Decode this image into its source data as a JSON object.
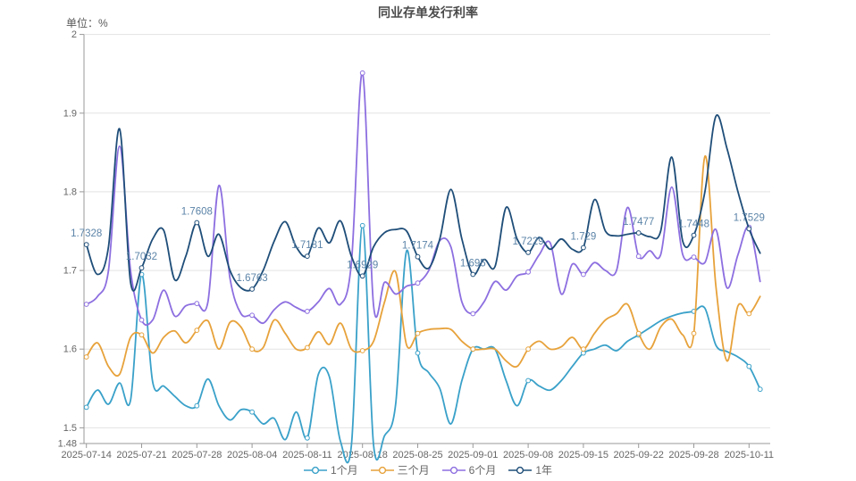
{
  "title": "同业存单发行利率",
  "unit_label": "单位：%",
  "legend": [
    {
      "label": "1个月",
      "color": "#3aa1c9"
    },
    {
      "label": "三个月",
      "color": "#e7a23b"
    },
    {
      "label": "6个月",
      "color": "#8d6fe0"
    },
    {
      "label": "1年",
      "color": "#1f4e79"
    }
  ],
  "chart_data": {
    "type": "line",
    "title": "同业存单发行利率",
    "ylabel": "单位：%",
    "ylim": [
      1.48,
      2.0
    ],
    "yticks": [
      1.48,
      1.5,
      1.6,
      1.7,
      1.8,
      1.9,
      2
    ],
    "ytick_labels": [
      "1.48",
      "1.5",
      "1.6",
      "1.7",
      "1.8",
      "1.9",
      "2"
    ],
    "grid_values": [
      1.5,
      1.6,
      1.7,
      1.8,
      1.9,
      2
    ],
    "x_labels": [
      "2025-07-14",
      "2025-07-21",
      "2025-07-28",
      "2025-08-04",
      "2025-08-11",
      "2025-08-18",
      "2025-08-25",
      "2025-09-01",
      "2025-09-08",
      "2025-09-15",
      "2025-09-22",
      "2025-09-28",
      "2025-10-11"
    ],
    "label_indices": [
      0,
      5,
      10,
      15,
      20,
      25,
      30,
      35,
      40,
      45,
      50,
      55,
      60
    ],
    "label_color": "#5c84a8",
    "grid_color": "#e3e3e3",
    "axis_color": "#999999",
    "tick_text_color": "#666666",
    "legend_position": "bottom",
    "series": [
      {
        "name": "1个月",
        "color": "#3aa1c9",
        "end_marker": true,
        "values": [
          1.526,
          1.548,
          1.53,
          1.557,
          1.535,
          1.695,
          1.558,
          1.553,
          1.54,
          1.528,
          1.528,
          1.562,
          1.528,
          1.51,
          1.523,
          1.52,
          1.505,
          1.512,
          1.485,
          1.52,
          1.487,
          1.568,
          1.565,
          1.483,
          1.478,
          1.757,
          1.478,
          1.49,
          1.53,
          1.725,
          1.595,
          1.57,
          1.55,
          1.505,
          1.56,
          1.6,
          1.6,
          1.6,
          1.56,
          1.528,
          1.56,
          1.553,
          1.548,
          1.56,
          1.578,
          1.595,
          1.6,
          1.605,
          1.598,
          1.61,
          1.618,
          1.627,
          1.636,
          1.642,
          1.646,
          1.648,
          1.652,
          1.605,
          1.597,
          1.59,
          1.578,
          1.549
        ]
      },
      {
        "name": "三个月",
        "color": "#e7a23b",
        "end_marker": false,
        "values": [
          1.59,
          1.608,
          1.578,
          1.568,
          1.615,
          1.618,
          1.595,
          1.615,
          1.623,
          1.608,
          1.624,
          1.636,
          1.6,
          1.634,
          1.628,
          1.6,
          1.602,
          1.637,
          1.62,
          1.6,
          1.602,
          1.622,
          1.606,
          1.633,
          1.6,
          1.598,
          1.61,
          1.66,
          1.698,
          1.605,
          1.62,
          1.625,
          1.626,
          1.625,
          1.61,
          1.6,
          1.6,
          1.6,
          1.585,
          1.578,
          1.6,
          1.61,
          1.6,
          1.603,
          1.615,
          1.6,
          1.62,
          1.637,
          1.645,
          1.657,
          1.62,
          1.6,
          1.628,
          1.638,
          1.618,
          1.62,
          1.845,
          1.68,
          1.585,
          1.655,
          1.645,
          1.667
        ]
      },
      {
        "name": "6个月",
        "color": "#8d6fe0",
        "end_marker": false,
        "values": [
          1.657,
          1.667,
          1.7,
          1.858,
          1.7,
          1.637,
          1.637,
          1.675,
          1.642,
          1.655,
          1.658,
          1.66,
          1.808,
          1.69,
          1.645,
          1.643,
          1.633,
          1.65,
          1.66,
          1.653,
          1.648,
          1.66,
          1.677,
          1.657,
          1.71,
          1.951,
          1.655,
          1.685,
          1.67,
          1.68,
          1.684,
          1.7,
          1.738,
          1.73,
          1.66,
          1.645,
          1.66,
          1.686,
          1.675,
          1.693,
          1.698,
          1.72,
          1.735,
          1.67,
          1.708,
          1.695,
          1.71,
          1.7,
          1.7,
          1.78,
          1.718,
          1.725,
          1.72,
          1.806,
          1.72,
          1.717,
          1.71,
          1.752,
          1.678,
          1.72,
          1.755,
          1.686
        ]
      },
      {
        "name": "1年",
        "color": "#1f4e79",
        "end_marker": false,
        "labels": [
          "1.7328",
          "1.7032",
          "1.7608",
          "1.6763",
          "1.7181",
          "1.6929",
          "1.7174",
          "1.695",
          "1.7229",
          "1.729",
          "1.7477",
          "1.7448",
          "1.7529"
        ],
        "values": [
          1.7328,
          1.695,
          1.73,
          1.88,
          1.685,
          1.7032,
          1.74,
          1.751,
          1.688,
          1.718,
          1.7608,
          1.718,
          1.746,
          1.7,
          1.678,
          1.6763,
          1.7,
          1.737,
          1.762,
          1.73,
          1.7181,
          1.754,
          1.735,
          1.763,
          1.718,
          1.6929,
          1.73,
          1.748,
          1.752,
          1.75,
          1.7174,
          1.703,
          1.74,
          1.803,
          1.74,
          1.695,
          1.714,
          1.705,
          1.78,
          1.74,
          1.7229,
          1.742,
          1.727,
          1.74,
          1.727,
          1.729,
          1.79,
          1.75,
          1.744,
          1.746,
          1.7477,
          1.743,
          1.75,
          1.844,
          1.737,
          1.7448,
          1.8,
          1.896,
          1.855,
          1.8,
          1.7529,
          1.722
        ]
      }
    ]
  }
}
